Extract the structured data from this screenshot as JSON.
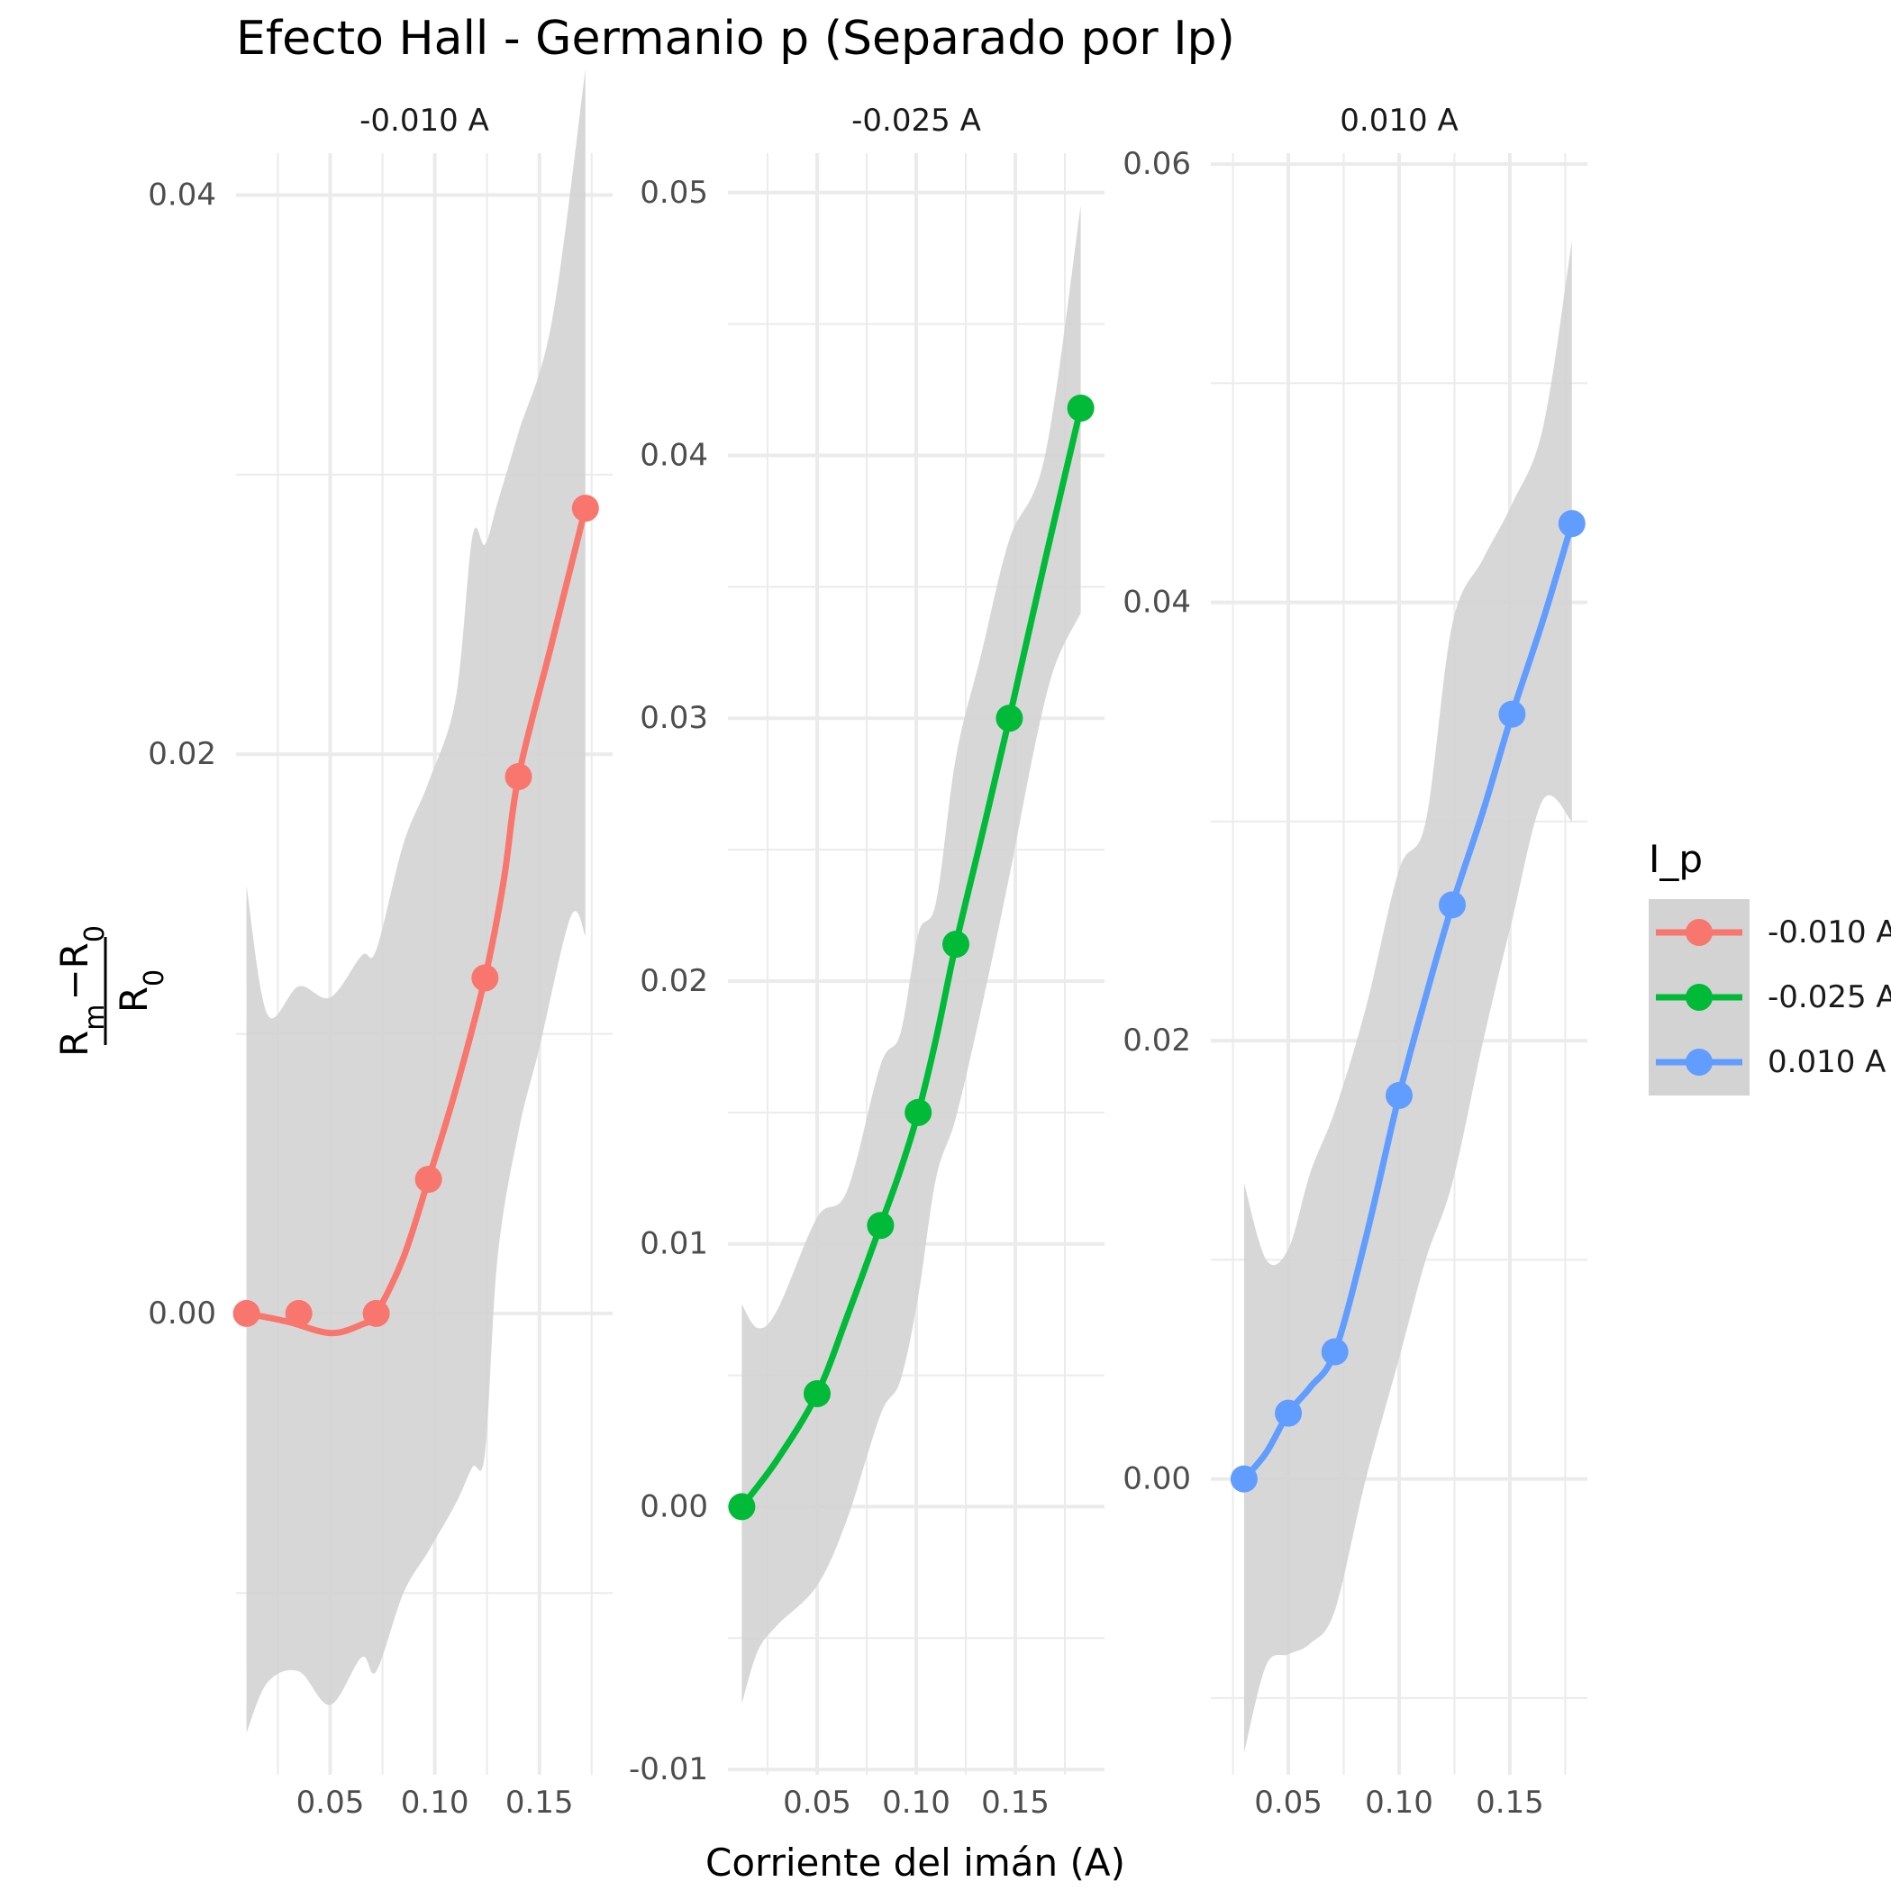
{
  "chart_data": {
    "type": "line",
    "title": "Efecto Hall - Germanio p (Separado por Ip)",
    "xlabel": "Corriente del imán (A)",
    "ylabel": {
      "num_a": "R",
      "num_a_sub": "m",
      "minus": "−",
      "num_b": "R",
      "num_b_sub": "0",
      "den": "R",
      "den_sub": "0"
    },
    "legend": {
      "title": "I_p",
      "position": "right"
    },
    "colors": {
      "-0.010 A": "#F8766D",
      "-0.025 A": "#00BA38",
      "0.010 A": "#619CFF"
    },
    "band_color": "#d3d3d3",
    "panels": [
      {
        "label": "-0.010 A",
        "xlim": [
          0.005,
          0.185
        ],
        "ylim": [
          -0.0165,
          0.0415
        ],
        "xticks": [
          0.05,
          0.1,
          0.15
        ],
        "xtick_labels": [
          "0.05",
          "0.10",
          "0.15"
        ],
        "yticks": [
          0.0,
          0.02,
          0.04
        ],
        "ytick_labels": [
          "0.00",
          "0.02",
          "0.04"
        ],
        "x": [
          0.01,
          0.035,
          0.072,
          0.097,
          0.124,
          0.14,
          0.172
        ],
        "y": [
          0.0,
          0.0,
          0.0,
          0.0048,
          0.012,
          0.0192,
          0.0288
        ],
        "fit": [
          [
            0.01,
            0.0
          ],
          [
            0.03,
            -0.0003
          ],
          [
            0.05,
            -0.0007
          ],
          [
            0.065,
            -0.0004
          ],
          [
            0.072,
            0.0
          ],
          [
            0.085,
            0.002
          ],
          [
            0.097,
            0.0048
          ],
          [
            0.11,
            0.008
          ],
          [
            0.124,
            0.012
          ],
          [
            0.133,
            0.0155
          ],
          [
            0.14,
            0.0192
          ],
          [
            0.156,
            0.024
          ],
          [
            0.172,
            0.0288
          ]
        ],
        "band_upper": [
          [
            0.01,
            0.0153
          ],
          [
            0.02,
            0.0107
          ],
          [
            0.035,
            0.0117
          ],
          [
            0.05,
            0.0113
          ],
          [
            0.065,
            0.0128
          ],
          [
            0.072,
            0.013
          ],
          [
            0.085,
            0.0168
          ],
          [
            0.097,
            0.019
          ],
          [
            0.11,
            0.022
          ],
          [
            0.118,
            0.0278
          ],
          [
            0.124,
            0.0275
          ],
          [
            0.13,
            0.029
          ],
          [
            0.14,
            0.0315
          ],
          [
            0.156,
            0.0355
          ],
          [
            0.172,
            0.0445
          ]
        ],
        "band_lower": [
          [
            0.172,
            0.0135
          ],
          [
            0.165,
            0.0142
          ],
          [
            0.15,
            0.0095
          ],
          [
            0.14,
            0.0065
          ],
          [
            0.13,
            0.002
          ],
          [
            0.124,
            -0.005
          ],
          [
            0.118,
            -0.0055
          ],
          [
            0.11,
            -0.0068
          ],
          [
            0.097,
            -0.0085
          ],
          [
            0.085,
            -0.01
          ],
          [
            0.072,
            -0.0128
          ],
          [
            0.065,
            -0.0123
          ],
          [
            0.05,
            -0.014
          ],
          [
            0.035,
            -0.0128
          ],
          [
            0.02,
            -0.0132
          ],
          [
            0.01,
            -0.015
          ]
        ]
      },
      {
        "label": "-0.025 A",
        "xlim": [
          0.005,
          0.195
        ],
        "ylim": [
          -0.0102,
          0.0515
        ],
        "xticks": [
          0.05,
          0.1,
          0.15
        ],
        "xtick_labels": [
          "0.05",
          "0.10",
          "0.15"
        ],
        "yticks": [
          -0.01,
          0.0,
          0.01,
          0.02,
          0.03,
          0.04,
          0.05
        ],
        "ytick_labels": [
          "-0.01",
          "0.00",
          "0.01",
          "0.02",
          "0.03",
          "0.04",
          "0.05"
        ],
        "x": [
          0.012,
          0.05,
          0.082,
          0.101,
          0.12,
          0.147,
          0.183
        ],
        "y": [
          0.0,
          0.0043,
          0.0107,
          0.015,
          0.0214,
          0.03,
          0.0418
        ],
        "fit": [
          [
            0.012,
            0.0
          ],
          [
            0.03,
            0.0018
          ],
          [
            0.05,
            0.0043
          ],
          [
            0.065,
            0.0072
          ],
          [
            0.082,
            0.0107
          ],
          [
            0.092,
            0.0128
          ],
          [
            0.101,
            0.015
          ],
          [
            0.11,
            0.0178
          ],
          [
            0.12,
            0.0214
          ],
          [
            0.133,
            0.0255
          ],
          [
            0.147,
            0.03
          ],
          [
            0.165,
            0.036
          ],
          [
            0.183,
            0.0418
          ]
        ],
        "band_upper": [
          [
            0.012,
            0.0077
          ],
          [
            0.02,
            0.0068
          ],
          [
            0.03,
            0.0075
          ],
          [
            0.05,
            0.011
          ],
          [
            0.065,
            0.012
          ],
          [
            0.082,
            0.0168
          ],
          [
            0.092,
            0.018
          ],
          [
            0.101,
            0.0218
          ],
          [
            0.11,
            0.023
          ],
          [
            0.12,
            0.0285
          ],
          [
            0.133,
            0.0325
          ],
          [
            0.147,
            0.0368
          ],
          [
            0.165,
            0.04
          ],
          [
            0.183,
            0.0495
          ]
        ],
        "band_lower": [
          [
            0.183,
            0.034
          ],
          [
            0.17,
            0.032
          ],
          [
            0.16,
            0.029
          ],
          [
            0.147,
            0.024
          ],
          [
            0.133,
            0.019
          ],
          [
            0.12,
            0.0148
          ],
          [
            0.11,
            0.0125
          ],
          [
            0.101,
            0.008
          ],
          [
            0.092,
            0.0048
          ],
          [
            0.082,
            0.0035
          ],
          [
            0.065,
            -0.0005
          ],
          [
            0.05,
            -0.003
          ],
          [
            0.03,
            -0.0045
          ],
          [
            0.02,
            -0.0055
          ],
          [
            0.012,
            -0.0075
          ]
        ]
      },
      {
        "label": "0.010 A",
        "xlim": [
          0.015,
          0.185
        ],
        "ylim": [
          -0.0135,
          0.0605
        ],
        "xticks": [
          0.05,
          0.1,
          0.15
        ],
        "xtick_labels": [
          "0.05",
          "0.10",
          "0.15"
        ],
        "yticks": [
          0.0,
          0.02,
          0.04,
          0.06
        ],
        "ytick_labels": [
          "0.00",
          "0.02",
          "0.04",
          "0.06"
        ],
        "x": [
          0.03,
          0.05,
          0.071,
          0.1,
          0.124,
          0.151,
          0.178
        ],
        "y": [
          0.0,
          0.003,
          0.0058,
          0.0175,
          0.0262,
          0.0349,
          0.0436
        ],
        "fit": [
          [
            0.03,
            0.0
          ],
          [
            0.04,
            0.0012
          ],
          [
            0.05,
            0.003
          ],
          [
            0.06,
            0.0042
          ],
          [
            0.071,
            0.0058
          ],
          [
            0.085,
            0.011
          ],
          [
            0.1,
            0.0175
          ],
          [
            0.112,
            0.022
          ],
          [
            0.124,
            0.0262
          ],
          [
            0.138,
            0.0305
          ],
          [
            0.151,
            0.0349
          ],
          [
            0.165,
            0.0392
          ],
          [
            0.178,
            0.0436
          ]
        ],
        "band_upper": [
          [
            0.03,
            0.0135
          ],
          [
            0.04,
            0.01
          ],
          [
            0.05,
            0.0105
          ],
          [
            0.06,
            0.014
          ],
          [
            0.071,
            0.0168
          ],
          [
            0.085,
            0.0215
          ],
          [
            0.1,
            0.0278
          ],
          [
            0.112,
            0.03
          ],
          [
            0.124,
            0.039
          ],
          [
            0.138,
            0.042
          ],
          [
            0.151,
            0.0445
          ],
          [
            0.165,
            0.048
          ],
          [
            0.178,
            0.0565
          ]
        ],
        "band_lower": [
          [
            0.178,
            0.03
          ],
          [
            0.165,
            0.031
          ],
          [
            0.151,
            0.0255
          ],
          [
            0.138,
            0.02
          ],
          [
            0.124,
            0.0135
          ],
          [
            0.112,
            0.01
          ],
          [
            0.1,
            0.0055
          ],
          [
            0.085,
            0.0
          ],
          [
            0.071,
            -0.006
          ],
          [
            0.06,
            -0.0075
          ],
          [
            0.05,
            -0.008
          ],
          [
            0.04,
            -0.0085
          ],
          [
            0.03,
            -0.0125
          ]
        ]
      }
    ]
  }
}
